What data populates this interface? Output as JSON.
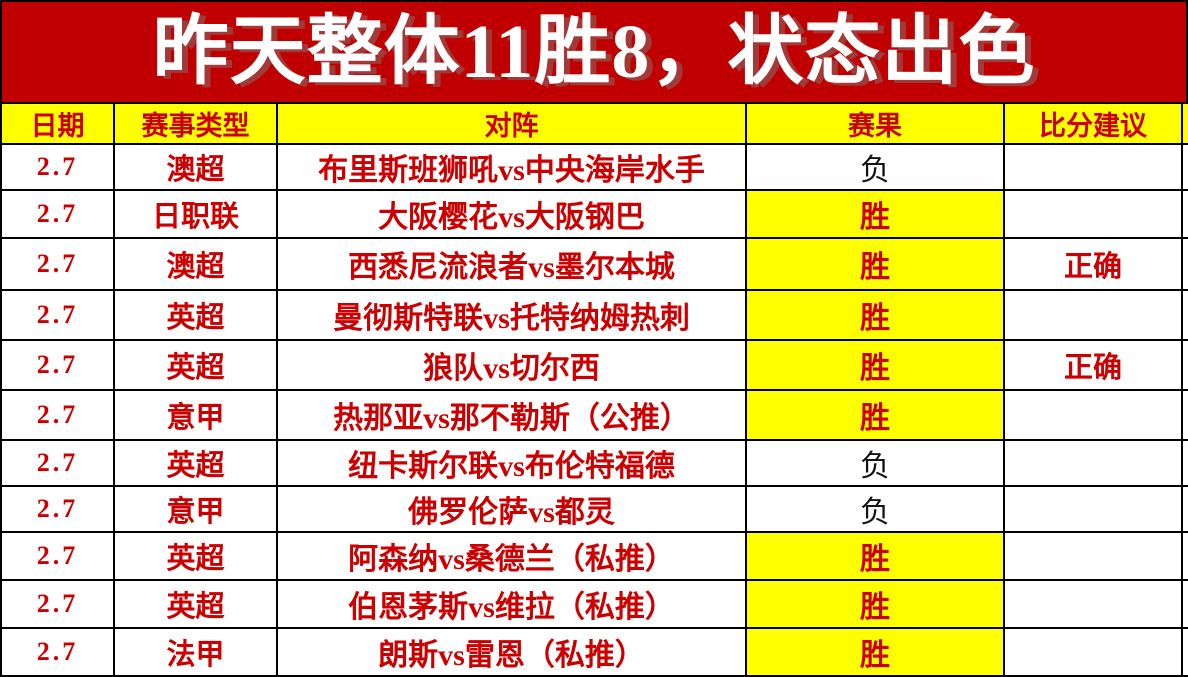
{
  "banner": {
    "title": "昨天整体11胜8，状态出色"
  },
  "colors": {
    "banner_bg": "#c00000",
    "accent_red": "#cc0000",
    "highlight_yellow": "#ffff00",
    "lose_text": "#141414"
  },
  "table": {
    "headers": {
      "date": "日期",
      "league": "赛事类型",
      "match": "对阵",
      "result": "赛果",
      "advice": "比分建议"
    },
    "rows": [
      {
        "date": "2.7",
        "league": "澳超",
        "match": "布里斯班狮吼vs中央海岸水手",
        "result": "负",
        "win": false,
        "advice": ""
      },
      {
        "date": "2.7",
        "league": "日职联",
        "match": "大阪樱花vs大阪钢巴",
        "result": "胜",
        "win": true,
        "advice": ""
      },
      {
        "date": "2.7",
        "league": "澳超",
        "match": "西悉尼流浪者vs墨尔本城",
        "result": "胜",
        "win": true,
        "advice": "正确"
      },
      {
        "date": "2.7",
        "league": "英超",
        "match": "曼彻斯特联vs托特纳姆热刺",
        "result": "胜",
        "win": true,
        "advice": ""
      },
      {
        "date": "2.7",
        "league": "英超",
        "match": "狼队vs切尔西",
        "result": "胜",
        "win": true,
        "advice": "正确"
      },
      {
        "date": "2.7",
        "league": "意甲",
        "match": "热那亚vs那不勒斯（公推）",
        "result": "胜",
        "win": true,
        "advice": ""
      },
      {
        "date": "2.7",
        "league": "英超",
        "match": "纽卡斯尔联vs布伦特福德",
        "result": "负",
        "win": false,
        "advice": ""
      },
      {
        "date": "2.7",
        "league": "意甲",
        "match": "佛罗伦萨vs都灵",
        "result": "负",
        "win": false,
        "advice": ""
      },
      {
        "date": "2.7",
        "league": "英超",
        "match": "阿森纳vs桑德兰（私推）",
        "result": "胜",
        "win": true,
        "advice": ""
      },
      {
        "date": "2.7",
        "league": "英超",
        "match": "伯恩茅斯vs维拉（私推）",
        "result": "胜",
        "win": true,
        "advice": ""
      },
      {
        "date": "2.7",
        "league": "法甲",
        "match": "朗斯vs雷恩（私推）",
        "result": "胜",
        "win": true,
        "advice": ""
      }
    ]
  }
}
